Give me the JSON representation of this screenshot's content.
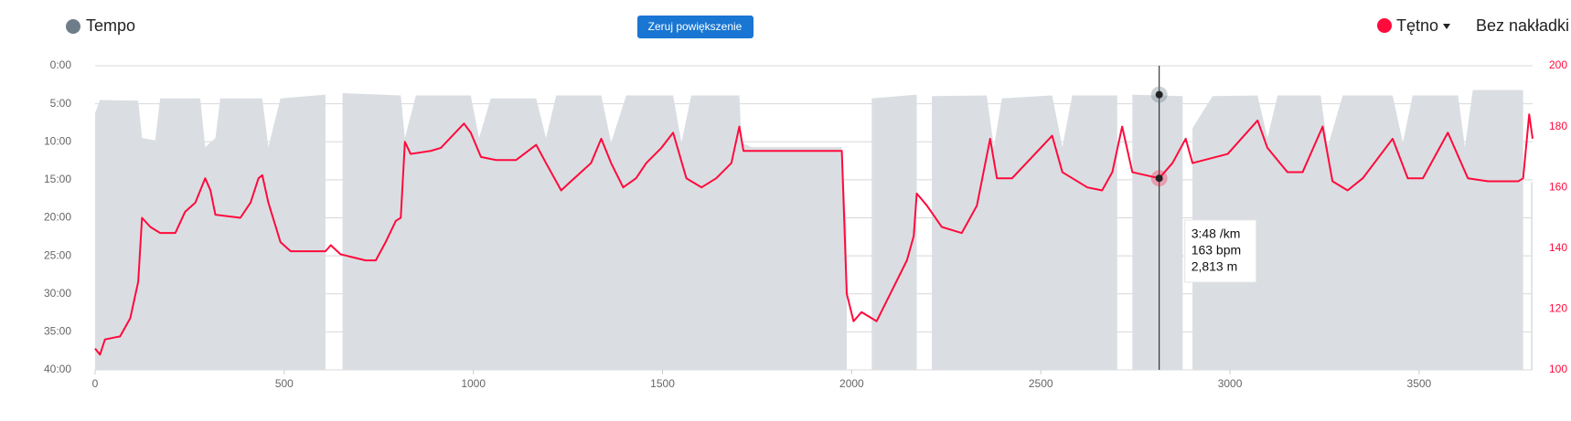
{
  "chart_data": {
    "type": "area_line",
    "controls": {
      "reset_zoom": "Zeruj powiększenie",
      "overlay": "Bez nakładki"
    },
    "series": [
      {
        "name": "Tempo",
        "type": "area",
        "color": "#dadee2",
        "legend_color": "#6f7d8a",
        "x": [
          0,
          13,
          114,
          124,
          159,
          172,
          278,
          291,
          318,
          331,
          442,
          458,
          490,
          609,
          617,
          654,
          808,
          819,
          848,
          993,
          1015,
          1046,
          1166,
          1192,
          1219,
          1338,
          1364,
          1404,
          1528,
          1550,
          1576,
          1703,
          1709,
          1735,
          1974,
          1987,
          1995,
          2053,
          2172,
          2185,
          2212,
          2357,
          2376,
          2397,
          2530,
          2557,
          2583,
          2702,
          2715,
          2742,
          2875,
          2882,
          2901,
          2954,
          3073,
          3099,
          3126,
          3240,
          3258,
          3298,
          3430,
          3457,
          3483,
          3603,
          3621,
          3642,
          3775,
          3788,
          3796,
          3800
        ],
        "values": [
          6.2,
          4.5,
          4.6,
          9.5,
          9.8,
          4.3,
          4.3,
          10.7,
          9.5,
          4.3,
          4.3,
          10.7,
          4.3,
          3.8,
          null,
          3.6,
          3.9,
          9.5,
          3.9,
          3.9,
          9.5,
          4.3,
          4.3,
          9.5,
          3.9,
          3.9,
          10.1,
          3.9,
          3.9,
          10.1,
          3.9,
          3.9,
          10.1,
          10.7,
          10.7,
          21.7,
          null,
          4.3,
          3.8,
          null,
          4.0,
          3.9,
          10.7,
          4.3,
          3.9,
          10.7,
          3.9,
          3.9,
          null,
          3.8,
          4.0,
          null,
          8.2,
          4.0,
          3.9,
          9.5,
          3.9,
          3.9,
          10.7,
          3.9,
          3.9,
          10.1,
          3.9,
          3.9,
          10.7,
          3.2,
          3.2,
          null,
          15.3,
          15.3
        ]
      },
      {
        "name": "Tętno",
        "type": "line",
        "axis": "y2",
        "color": "#ff0a3c",
        "legend_color": "#ff0a3c",
        "x": [
          0,
          13,
          26,
          66,
          93,
          114,
          124,
          146,
          172,
          212,
          238,
          265,
          278,
          291,
          305,
          318,
          384,
          411,
          432,
          442,
          458,
          490,
          517,
          609,
          623,
          649,
          715,
          742,
          768,
          795,
          808,
          819,
          834,
          887,
          914,
          975,
          993,
          1020,
          1060,
          1113,
          1166,
          1192,
          1232,
          1258,
          1311,
          1338,
          1364,
          1396,
          1430,
          1457,
          1497,
          1528,
          1563,
          1603,
          1642,
          1682,
          1703,
          1714,
          1974,
          1987,
          2005,
          2026,
          2066,
          2106,
          2146,
          2164,
          2172,
          2199,
          2238,
          2291,
          2331,
          2366,
          2384,
          2424,
          2530,
          2557,
          2623,
          2662,
          2689,
          2715,
          2742,
          2813,
          2848,
          2883,
          2901,
          2994,
          3073,
          3099,
          3152,
          3192,
          3245,
          3271,
          3311,
          3351,
          3430,
          3470,
          3510,
          3576,
          3629,
          3682,
          3762,
          3775,
          3791,
          3800
        ],
        "values": [
          107,
          105,
          110,
          111,
          117,
          129,
          150,
          147,
          145,
          145,
          152,
          155,
          159,
          163,
          159,
          151,
          150,
          155,
          163,
          164,
          155,
          142,
          139,
          139,
          141,
          138,
          136,
          136,
          142,
          149,
          150,
          175,
          171,
          172,
          173,
          181,
          178,
          170,
          169,
          169,
          174,
          168,
          159,
          162,
          168,
          176,
          168,
          160,
          163,
          168,
          173,
          178,
          163,
          160,
          163,
          168,
          180,
          172,
          172,
          125,
          116,
          119,
          116,
          126,
          136,
          144,
          158,
          154,
          147,
          145,
          154,
          176,
          163,
          163,
          177,
          165,
          160,
          159,
          165,
          180,
          165,
          163,
          168,
          176,
          168,
          171,
          182,
          173,
          165,
          165,
          180,
          162,
          159,
          163,
          176,
          163,
          163,
          178,
          163,
          162,
          162,
          163,
          184,
          176
        ]
      }
    ],
    "xlim": [
      0,
      3800
    ],
    "xticks": [
      0,
      500,
      1000,
      1500,
      2000,
      2500,
      3000,
      3500
    ],
    "ylim": [
      0,
      40
    ],
    "y_reversed": true,
    "yticks": [
      {
        "value": 0,
        "label": "0:00"
      },
      {
        "value": 5,
        "label": "5:00"
      },
      {
        "value": 10,
        "label": "10:00"
      },
      {
        "value": 15,
        "label": "15:00"
      },
      {
        "value": 20,
        "label": "20:00"
      },
      {
        "value": 25,
        "label": "25:00"
      },
      {
        "value": 30,
        "label": "30:00"
      },
      {
        "value": 35,
        "label": "35:00"
      },
      {
        "value": 40,
        "label": "40:00"
      }
    ],
    "y2lim": [
      100,
      200
    ],
    "y2ticks": [
      100,
      120,
      140,
      160,
      180,
      200
    ],
    "grid": true,
    "tooltip": {
      "x": {
        "value": 2813,
        "label": "2,813 m"
      },
      "pace": {
        "value": 3.8,
        "label": "3:48 /km"
      },
      "heart_rate": {
        "value": 163,
        "label": "163 bpm"
      }
    }
  }
}
